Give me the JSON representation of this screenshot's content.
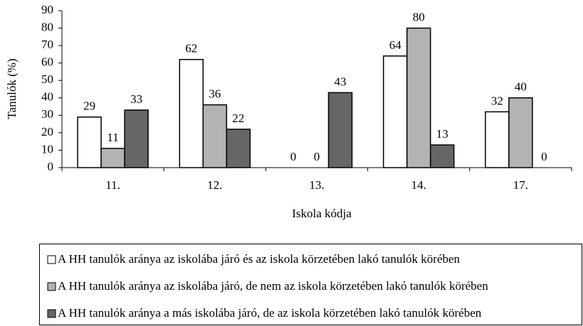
{
  "chart_data": {
    "type": "bar",
    "x_label": "Iskola kódja",
    "y_label": "Tanulók (%)",
    "categories": [
      "11.",
      "12.",
      "13.",
      "14.",
      "17."
    ],
    "series": [
      {
        "name": "A HH tanulók aránya az iskolába járó és az iskola körzetében lakó tanulók körében",
        "color": "#ffffff",
        "values": [
          29,
          62,
          0,
          64,
          32
        ]
      },
      {
        "name": "A HH tanulók aránya az iskolába járó, de nem az iskola körzetében lakó tanulók körében",
        "color": "#b3b3b3",
        "values": [
          11,
          36,
          0,
          80,
          40
        ]
      },
      {
        "name": "A HH tanulók aránya a más iskolába járó, de az iskola körzetében lakó tanulók körében",
        "color": "#666666",
        "values": [
          33,
          22,
          43,
          13,
          0
        ]
      }
    ],
    "ylim": [
      0,
      90
    ],
    "yticks": [
      0,
      10,
      20,
      30,
      40,
      50,
      60,
      70,
      80,
      90
    ],
    "grid": false
  }
}
